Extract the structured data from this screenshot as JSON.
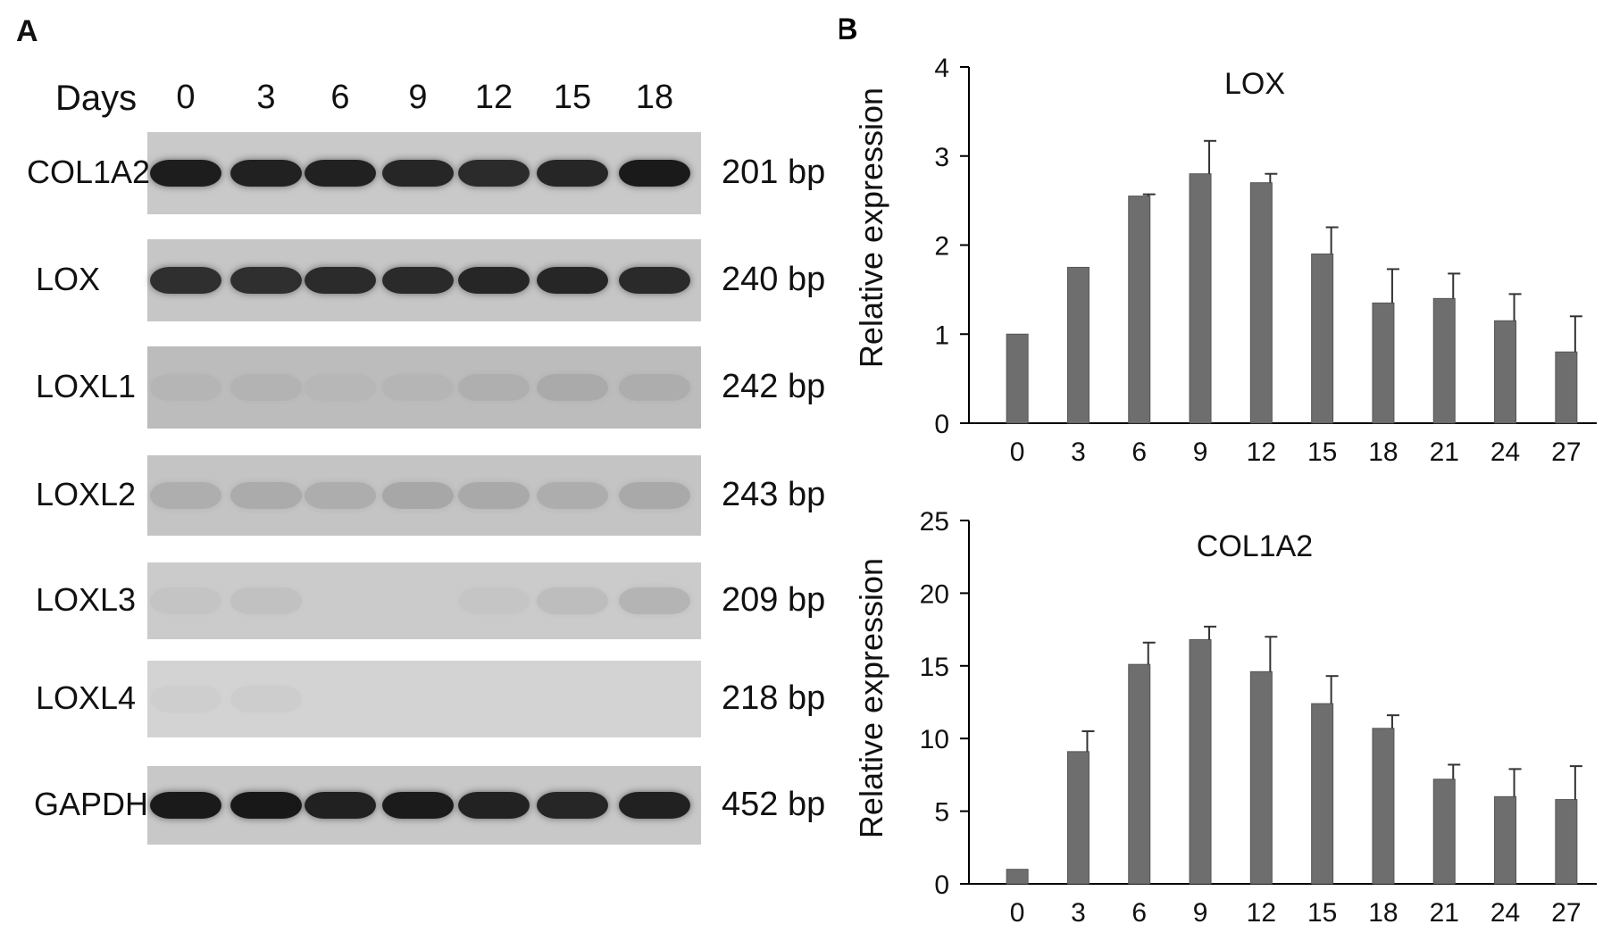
{
  "panel_a": {
    "letter": "A",
    "days_label": "Days",
    "days": [
      "0",
      "3",
      "6",
      "9",
      "12",
      "15",
      "18"
    ],
    "gels": [
      {
        "gene": "COL1A2",
        "size": "201 bp",
        "band_intensity": [
          0.95,
          0.93,
          0.93,
          0.9,
          0.88,
          0.9,
          0.97
        ]
      },
      {
        "gene": "LOX",
        "size": "240 bp",
        "band_intensity": [
          0.85,
          0.85,
          0.87,
          0.88,
          0.9,
          0.9,
          0.88
        ]
      },
      {
        "gene": "LOXL1",
        "size": "242 bp",
        "band_intensity": [
          0.04,
          0.05,
          0.03,
          0.04,
          0.08,
          0.1,
          0.09
        ]
      },
      {
        "gene": "LOXL2",
        "size": "243 bp",
        "band_intensity": [
          0.12,
          0.14,
          0.13,
          0.16,
          0.15,
          0.13,
          0.15
        ]
      },
      {
        "gene": "LOXL3",
        "size": "209 bp",
        "band_intensity": [
          0.04,
          0.05,
          0.0,
          0.0,
          0.03,
          0.07,
          0.12
        ]
      },
      {
        "gene": "LOXL4",
        "size": "218 bp",
        "band_intensity": [
          0.02,
          0.03,
          0.0,
          0.0,
          0.0,
          0.0,
          0.0
        ]
      },
      {
        "gene": "GAPDH",
        "size": "452 bp",
        "band_intensity": [
          0.97,
          0.98,
          0.93,
          0.96,
          0.92,
          0.9,
          0.93
        ]
      }
    ],
    "gel_backgrounds": [
      "#c9c9c9",
      "#c6c6c6",
      "#bcbcbc",
      "#c4c4c4",
      "#cbcbcb",
      "#d3d3d3",
      "#c8c8c8"
    ]
  },
  "panel_b": {
    "letter": "B"
  },
  "chart_data": [
    {
      "type": "bar",
      "title": "LOX",
      "xlabel": "",
      "ylabel": "Relative expression",
      "categories": [
        "0",
        "3",
        "6",
        "9",
        "12",
        "15",
        "18",
        "21",
        "24",
        "27"
      ],
      "values": [
        1.0,
        1.75,
        2.55,
        2.8,
        2.7,
        1.9,
        1.35,
        1.4,
        1.15,
        0.8
      ],
      "errors": [
        0.0,
        0.0,
        0.02,
        0.37,
        0.1,
        0.3,
        0.38,
        0.28,
        0.3,
        0.4
      ],
      "ylim": [
        0,
        4
      ],
      "yticks": [
        0,
        1,
        2,
        3,
        4
      ],
      "grid": false,
      "bar_color": "#6e6e6e"
    },
    {
      "type": "bar",
      "title": "COL1A2",
      "xlabel": "",
      "ylabel": "Relative expression",
      "categories": [
        "0",
        "3",
        "6",
        "9",
        "12",
        "15",
        "18",
        "21",
        "24",
        "27"
      ],
      "values": [
        1.0,
        9.1,
        15.1,
        16.8,
        14.6,
        12.4,
        10.7,
        7.2,
        6.0,
        5.8
      ],
      "errors": [
        0.0,
        1.4,
        1.5,
        0.9,
        2.4,
        1.9,
        0.9,
        1.0,
        1.9,
        2.3
      ],
      "ylim": [
        0,
        25
      ],
      "yticks": [
        0,
        5,
        10,
        15,
        20,
        25
      ],
      "grid": false,
      "bar_color": "#6e6e6e"
    }
  ]
}
